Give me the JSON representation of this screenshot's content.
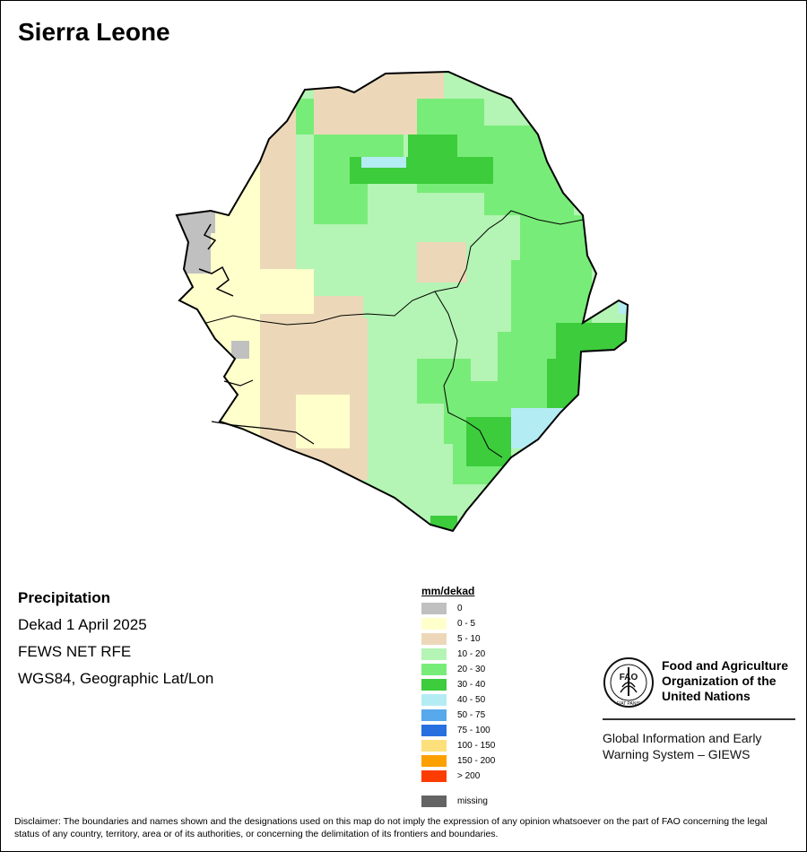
{
  "title": "Sierra Leone",
  "info": {
    "variable": "Precipitation",
    "period": "Dekad 1 April 2025",
    "source": "FEWS NET RFE",
    "projection": "WGS84, Geographic Lat/Lon"
  },
  "legend": {
    "unit": "mm/dekad",
    "classes": [
      {
        "label": "0",
        "color": "#c0c0c0"
      },
      {
        "label": "0 - 5",
        "color": "#ffffcc"
      },
      {
        "label": "5 - 10",
        "color": "#ecd8b8"
      },
      {
        "label": "10 - 20",
        "color": "#b4f4b4"
      },
      {
        "label": "20 - 30",
        "color": "#78ec78"
      },
      {
        "label": "30 - 40",
        "color": "#3ccc3c"
      },
      {
        "label": "40 - 50",
        "color": "#b4ecf4"
      },
      {
        "label": "50 - 75",
        "color": "#58a8ec"
      },
      {
        "label": "75 - 100",
        "color": "#2870e0"
      },
      {
        "label": "100 - 150",
        "color": "#fce07c"
      },
      {
        "label": "150 - 200",
        "color": "#fca000"
      },
      {
        "label": "> 200",
        "color": "#fc3c00"
      }
    ],
    "missing": {
      "label": "missing",
      "color": "#646464"
    }
  },
  "logo": {
    "org": "Food and Agriculture Organization of the United Nations",
    "system": "Global Information and Early Warning System – GIEWS",
    "emblem_letters": "FAO",
    "emblem_motto": "FIAT PANIS"
  },
  "disclaimer": "Disclaimer: The boundaries and names shown and the designations used on this map do not imply the expression of any opinion whatsoever on the part of FAO concerning the legal status of any country, territory, area or of its authorities, or concerning the delimitation of its frontiers and boundaries."
}
